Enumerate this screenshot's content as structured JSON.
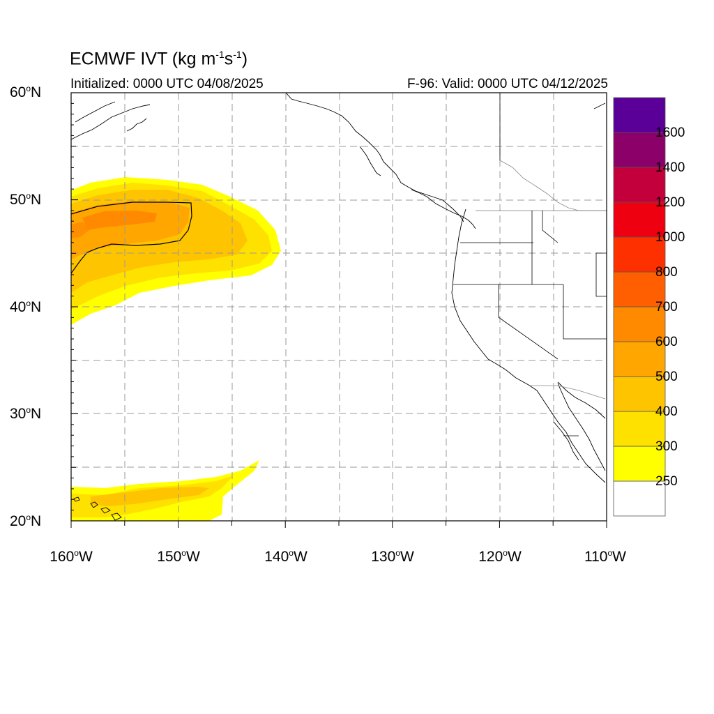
{
  "title": {
    "model": "ECMWF",
    "variable": "IVT",
    "units_main": "kg m",
    "units_exp1": "-1",
    "units_s": "s",
    "units_exp2": "-1"
  },
  "subtitle": {
    "initialized": "Initialized: 0000 UTC 04/08/2025",
    "valid": "F-96: Valid: 0000 UTC 04/12/2025"
  },
  "axes": {
    "lat_ticks": [
      {
        "value": "60",
        "hemi": "N"
      },
      {
        "value": "50",
        "hemi": "N"
      },
      {
        "value": "40",
        "hemi": "N"
      },
      {
        "value": "30",
        "hemi": "N"
      },
      {
        "value": "20",
        "hemi": "N"
      }
    ],
    "lon_ticks": [
      {
        "value": "160",
        "hemi": "W"
      },
      {
        "value": "150",
        "hemi": "W"
      },
      {
        "value": "140",
        "hemi": "W"
      },
      {
        "value": "130",
        "hemi": "W"
      },
      {
        "value": "120",
        "hemi": "W"
      },
      {
        "value": "110",
        "hemi": "W"
      }
    ],
    "lat_range": [
      20,
      60
    ],
    "lon_range": [
      -160,
      -110
    ]
  },
  "colorbar": {
    "levels": [
      "250",
      "300",
      "400",
      "500",
      "600",
      "700",
      "800",
      "1000",
      "1200",
      "1400",
      "1600"
    ],
    "colors": [
      "#ffffff",
      "#ffff00",
      "#ffe100",
      "#ffc400",
      "#ffa600",
      "#ff8a00",
      "#ff5f00",
      "#ff3000",
      "#ee0010",
      "#c4003c",
      "#8c006a",
      "#5a0098"
    ]
  },
  "map": {
    "gridlines": "dashed",
    "gridline_color": "#999999"
  }
}
